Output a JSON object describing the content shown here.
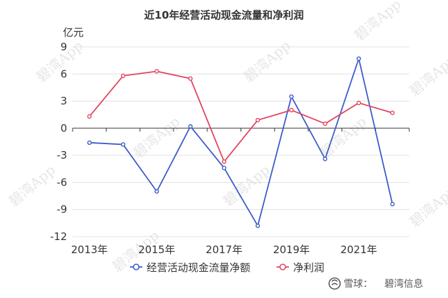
{
  "chart_data": {
    "type": "line",
    "title": "近10年经营活动现金流量和净利润",
    "ylabel": "亿元",
    "xlabel": "",
    "ylim": [
      -12,
      9
    ],
    "yticks": [
      9,
      6,
      3,
      0,
      -3,
      -6,
      -9,
      -12
    ],
    "x": [
      2013,
      2014,
      2015,
      2016,
      2017,
      2018,
      2019,
      2020,
      2021,
      2022
    ],
    "xtick_labels": [
      "2013年",
      "2015年",
      "2017年",
      "2019年",
      "2021年"
    ],
    "grid": true,
    "legend_position": "bottom",
    "series": [
      {
        "name": "经营活动现金流量净额",
        "color": "#3d5bc9",
        "values": [
          -1.6,
          -1.8,
          -7.0,
          0.2,
          -4.4,
          -10.8,
          3.5,
          -3.4,
          7.7,
          -8.4
        ]
      },
      {
        "name": "净利润",
        "color": "#e2435f",
        "values": [
          1.3,
          5.8,
          6.3,
          5.5,
          -3.7,
          0.9,
          2.0,
          0.5,
          2.8,
          1.7
        ]
      }
    ]
  },
  "watermark": "碧湾App",
  "credit": {
    "brand": "雪球",
    "separator": "：",
    "author": "碧湾信息"
  },
  "colors": {
    "grid": "#e0e0e0",
    "axis": "#333333"
  }
}
